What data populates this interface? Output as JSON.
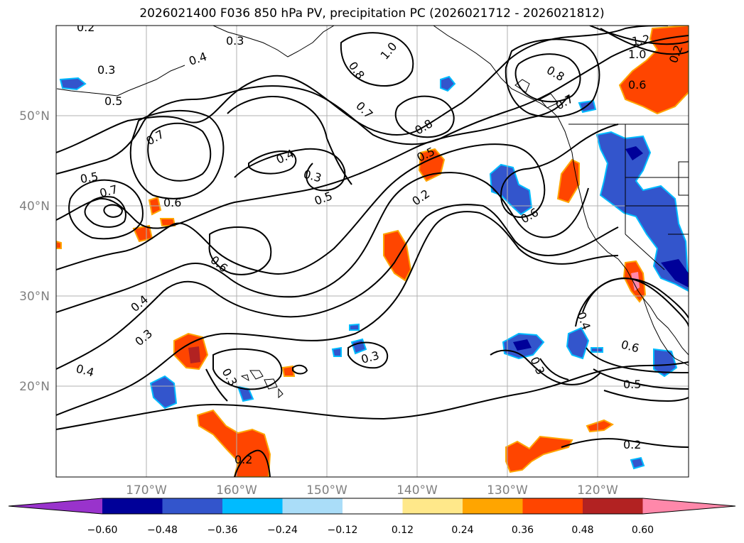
{
  "title": "2026021400 F036 850 hPa PV, precipitation PC (2026021712 - 2026021812)",
  "map": {
    "projection": "plate-carree",
    "lon_range": [
      180,
      -110
    ],
    "lat_range": [
      10,
      60
    ],
    "lat_ticks": [
      "50°N",
      "40°N",
      "30°N",
      "20°N"
    ],
    "lon_ticks": [
      "170°W",
      "160°W",
      "150°W",
      "140°W",
      "130°W",
      "120°W"
    ],
    "gridlines": true
  },
  "contours": {
    "field": "850 hPa PV",
    "color": "#000000",
    "labels": [
      "0.2",
      "0.3",
      "0.4",
      "0.3",
      "0.5",
      "0.7",
      "0.5",
      "0.7",
      "0.6",
      "0.4",
      "0.3",
      "0.5",
      "0.6",
      "0.4",
      "0.3",
      "0.4",
      "0.3",
      "0.2",
      "0.5",
      "0.2",
      "0.6",
      "0.8",
      "1.0",
      "0.7",
      "0.8",
      "0.8",
      "0.7",
      "1.2",
      "1.0",
      "0.6",
      "0.6",
      "0.5",
      "0.2",
      "0.3",
      "0.3",
      "0.4",
      "0.2"
    ]
  },
  "colorbar": {
    "labels": [
      "−0.60",
      "−0.48",
      "−0.36",
      "−0.24",
      "−0.12",
      "0.12",
      "0.24",
      "0.36",
      "0.48",
      "0.60"
    ],
    "colors": [
      "#9933cc",
      "#000099",
      "#3355cc",
      "#00bbff",
      "#aaddf8",
      "#ffffff",
      "#ffe88a",
      "#ffa500",
      "#ff4500",
      "#b22222",
      "#ff88aa"
    ],
    "extend": "both"
  }
}
